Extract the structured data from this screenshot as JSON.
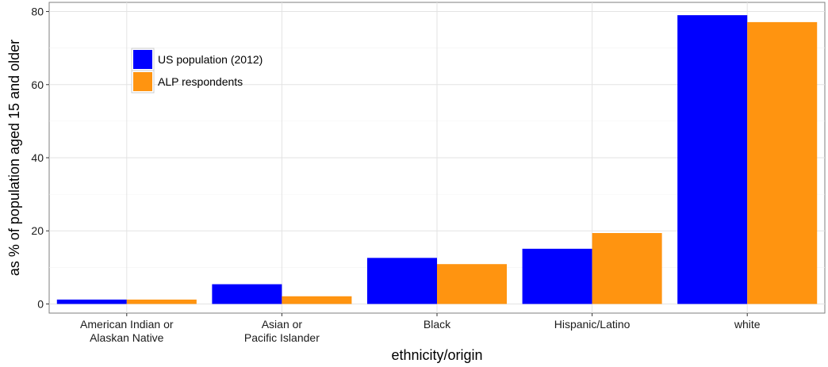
{
  "chart_data": {
    "type": "bar",
    "categories": [
      [
        "American Indian or",
        "Alaskan Native"
      ],
      [
        "Asian or",
        "Pacific Islander"
      ],
      [
        "Black"
      ],
      [
        "Hispanic/Latino"
      ],
      [
        "white"
      ]
    ],
    "series": [
      {
        "name": "US population (2012)",
        "color": "#0000ff",
        "values": [
          1.2,
          5.4,
          12.6,
          15.1,
          79.0
        ]
      },
      {
        "name": "ALP respondents",
        "color": "#ff9410",
        "values": [
          1.2,
          2.1,
          10.9,
          19.4,
          77.1
        ]
      }
    ],
    "xlabel": "ethnicity/origin",
    "ylabel": "as % of population aged 15 and older",
    "ylim": [
      -2.5,
      82.5
    ],
    "yticks": [
      0,
      20,
      40,
      60,
      80
    ],
    "grid": true,
    "legend_position": "top-left"
  }
}
